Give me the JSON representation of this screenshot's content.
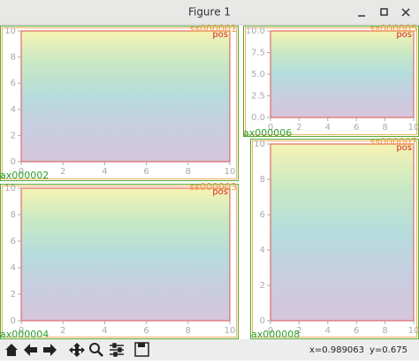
{
  "window": {
    "title": "Figure 1"
  },
  "panels": [
    {
      "subfigure_label": "ss000001",
      "title": "pos",
      "axes_label": "ax000002",
      "xlim": [
        0,
        10
      ],
      "ylim": [
        0,
        10
      ],
      "xticks": [
        0,
        2,
        4,
        6,
        8,
        10
      ],
      "yticks": [
        0,
        2,
        4,
        6,
        8,
        10
      ]
    },
    {
      "subfigure_label": "ss000005",
      "title": "pos",
      "axes_label": "ax000006",
      "xlim": [
        0,
        10
      ],
      "ylim": [
        0,
        10
      ],
      "xticks": [
        0,
        2,
        4,
        6,
        8,
        10
      ],
      "yticks": [
        {
          "value": 0,
          "label": "0.0"
        },
        {
          "value": 2.5,
          "label": "2.5"
        },
        {
          "value": 5,
          "label": "5.0"
        },
        {
          "value": 7.5,
          "label": "7.5"
        },
        {
          "value": 10,
          "label": "10.0"
        }
      ]
    },
    {
      "subfigure_label": "ss000003",
      "title": "pos",
      "axes_label": "ax000004",
      "xlim": [
        0,
        10
      ],
      "ylim": [
        0,
        10
      ],
      "xticks": [
        0,
        2,
        4,
        6,
        8,
        10
      ],
      "yticks": [
        0,
        2,
        4,
        6,
        8,
        10
      ]
    },
    {
      "subfigure_label": "ss000007",
      "title": "pos",
      "axes_label": "ax000008",
      "xlim": [
        0,
        10
      ],
      "ylim": [
        0,
        10
      ],
      "xticks": [
        0,
        2,
        4,
        6,
        8,
        10
      ],
      "yticks": [
        0,
        2,
        4,
        6,
        8,
        10
      ]
    }
  ],
  "status": {
    "x": "x=0.989063",
    "y": "y=0.675"
  }
}
